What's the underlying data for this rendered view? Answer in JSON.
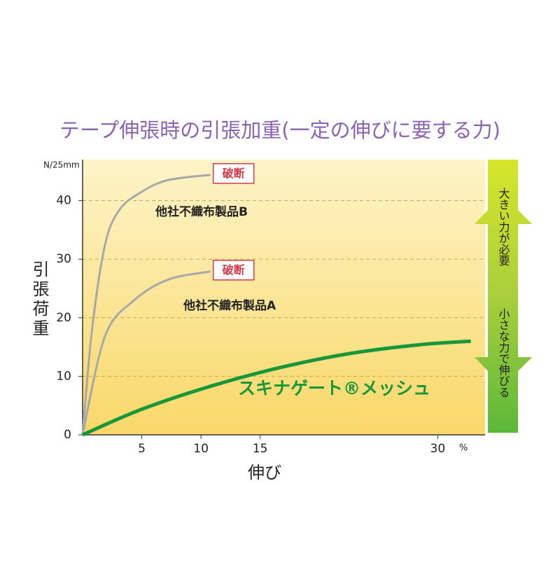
{
  "chart_data": {
    "type": "line",
    "title": "テープ伸張時の引張加重(一定の伸びに要する力)",
    "y_unit": "N/25mm",
    "y_label": "引張荷重",
    "x_label": "伸び",
    "x_unit": "%",
    "xlim": [
      0,
      34
    ],
    "ylim": [
      0,
      47
    ],
    "xticks": [
      5,
      10,
      15,
      30
    ],
    "yticks": [
      0,
      10,
      20,
      30,
      40
    ],
    "grid": true,
    "series": [
      {
        "name": "他社不織布製品B",
        "color": "#a8a8a8",
        "break_label": "破断",
        "x": [
          0,
          0.8,
          1.9,
          3.1,
          4.9,
          7.2,
          10.8
        ],
        "values": [
          0,
          18,
          32.5,
          38.4,
          41.4,
          43.5,
          44.4
        ]
      },
      {
        "name": "他社不織布製品A",
        "color": "#a8a8a8",
        "break_label": "破断",
        "x": [
          0,
          1.9,
          4.3,
          7.2,
          10.8
        ],
        "values": [
          0,
          16.9,
          22.9,
          26.5,
          27.9
        ]
      },
      {
        "name": "スキナゲート®メッシュ",
        "color": "#17963a",
        "x": [
          0,
          4.9,
          10.8,
          16.7,
          22.6,
          28.5,
          32.8
        ],
        "values": [
          0,
          4.3,
          8.3,
          11.5,
          13.9,
          15.4,
          16.0
        ]
      }
    ],
    "side_arrow": {
      "up": "大きい力が必要",
      "down": "小さな力で伸びる"
    }
  }
}
